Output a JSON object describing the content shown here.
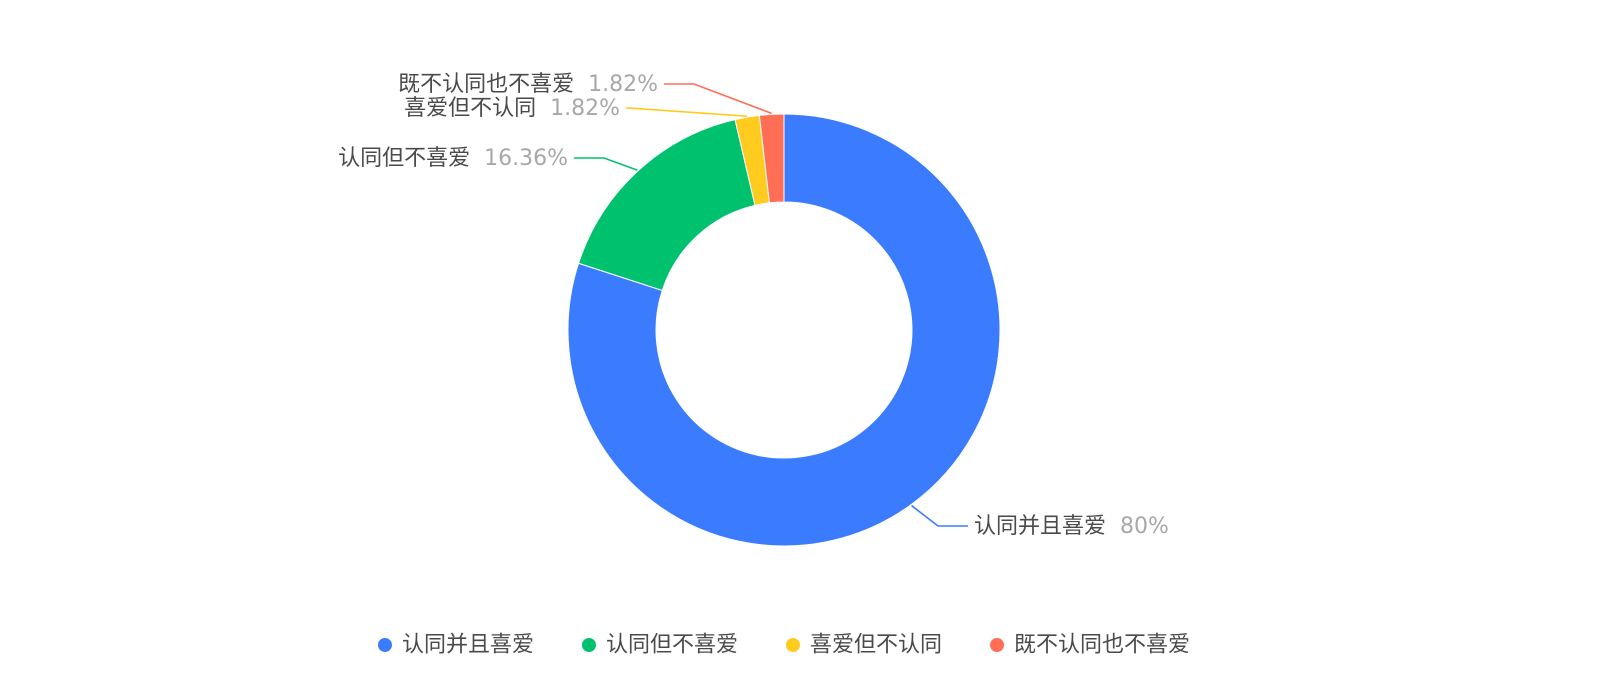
{
  "chart_data": {
    "type": "pie",
    "variant": "donut",
    "slices": [
      {
        "label": "认同并且喜爱",
        "value": 80,
        "percent_label": "80%",
        "color": "#3b7cff"
      },
      {
        "label": "认同但不喜爱",
        "value": 16.36,
        "percent_label": "16.36%",
        "color": "#00c16e"
      },
      {
        "label": "喜爱但不认同",
        "value": 1.82,
        "percent_label": "1.82%",
        "color": "#ffcb1f"
      },
      {
        "label": "既不认同也不喜爱",
        "value": 1.82,
        "percent_label": "1.82%",
        "color": "#ff6e55"
      }
    ],
    "legend_position": "bottom"
  }
}
